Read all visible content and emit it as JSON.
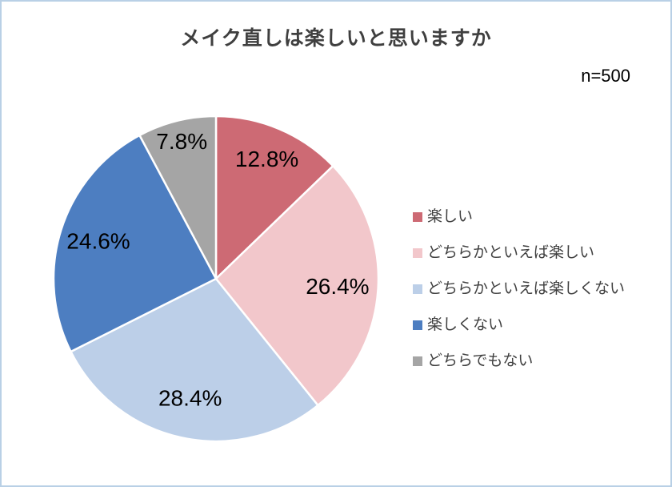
{
  "chart_data": {
    "type": "pie",
    "title": "メイク直しは楽しいと思いますか",
    "sample_label": "n=500",
    "categories": [
      "楽しい",
      "どちらかといえば楽しい",
      "どちらかといえば楽しくない",
      "楽しくない",
      "どちらでもない"
    ],
    "values": [
      12.8,
      26.4,
      28.4,
      24.6,
      7.8
    ],
    "value_labels": [
      "12.8%",
      "26.4%",
      "28.4%",
      "24.6%",
      "7.8%"
    ],
    "colors": [
      "#cd6a74",
      "#f2c7cb",
      "#bccfe8",
      "#4d7ec1",
      "#a5a5a5"
    ],
    "start_angle_deg": 0,
    "direction": "clockwise",
    "legend_position": "right",
    "slice_border_color": "#ffffff"
  },
  "colors": {
    "panel_border": "#b9d0e6",
    "background": "#ffffff",
    "title_text": "#3f3f3f",
    "legend_text": "#404040",
    "data_label_text": "#000000"
  }
}
